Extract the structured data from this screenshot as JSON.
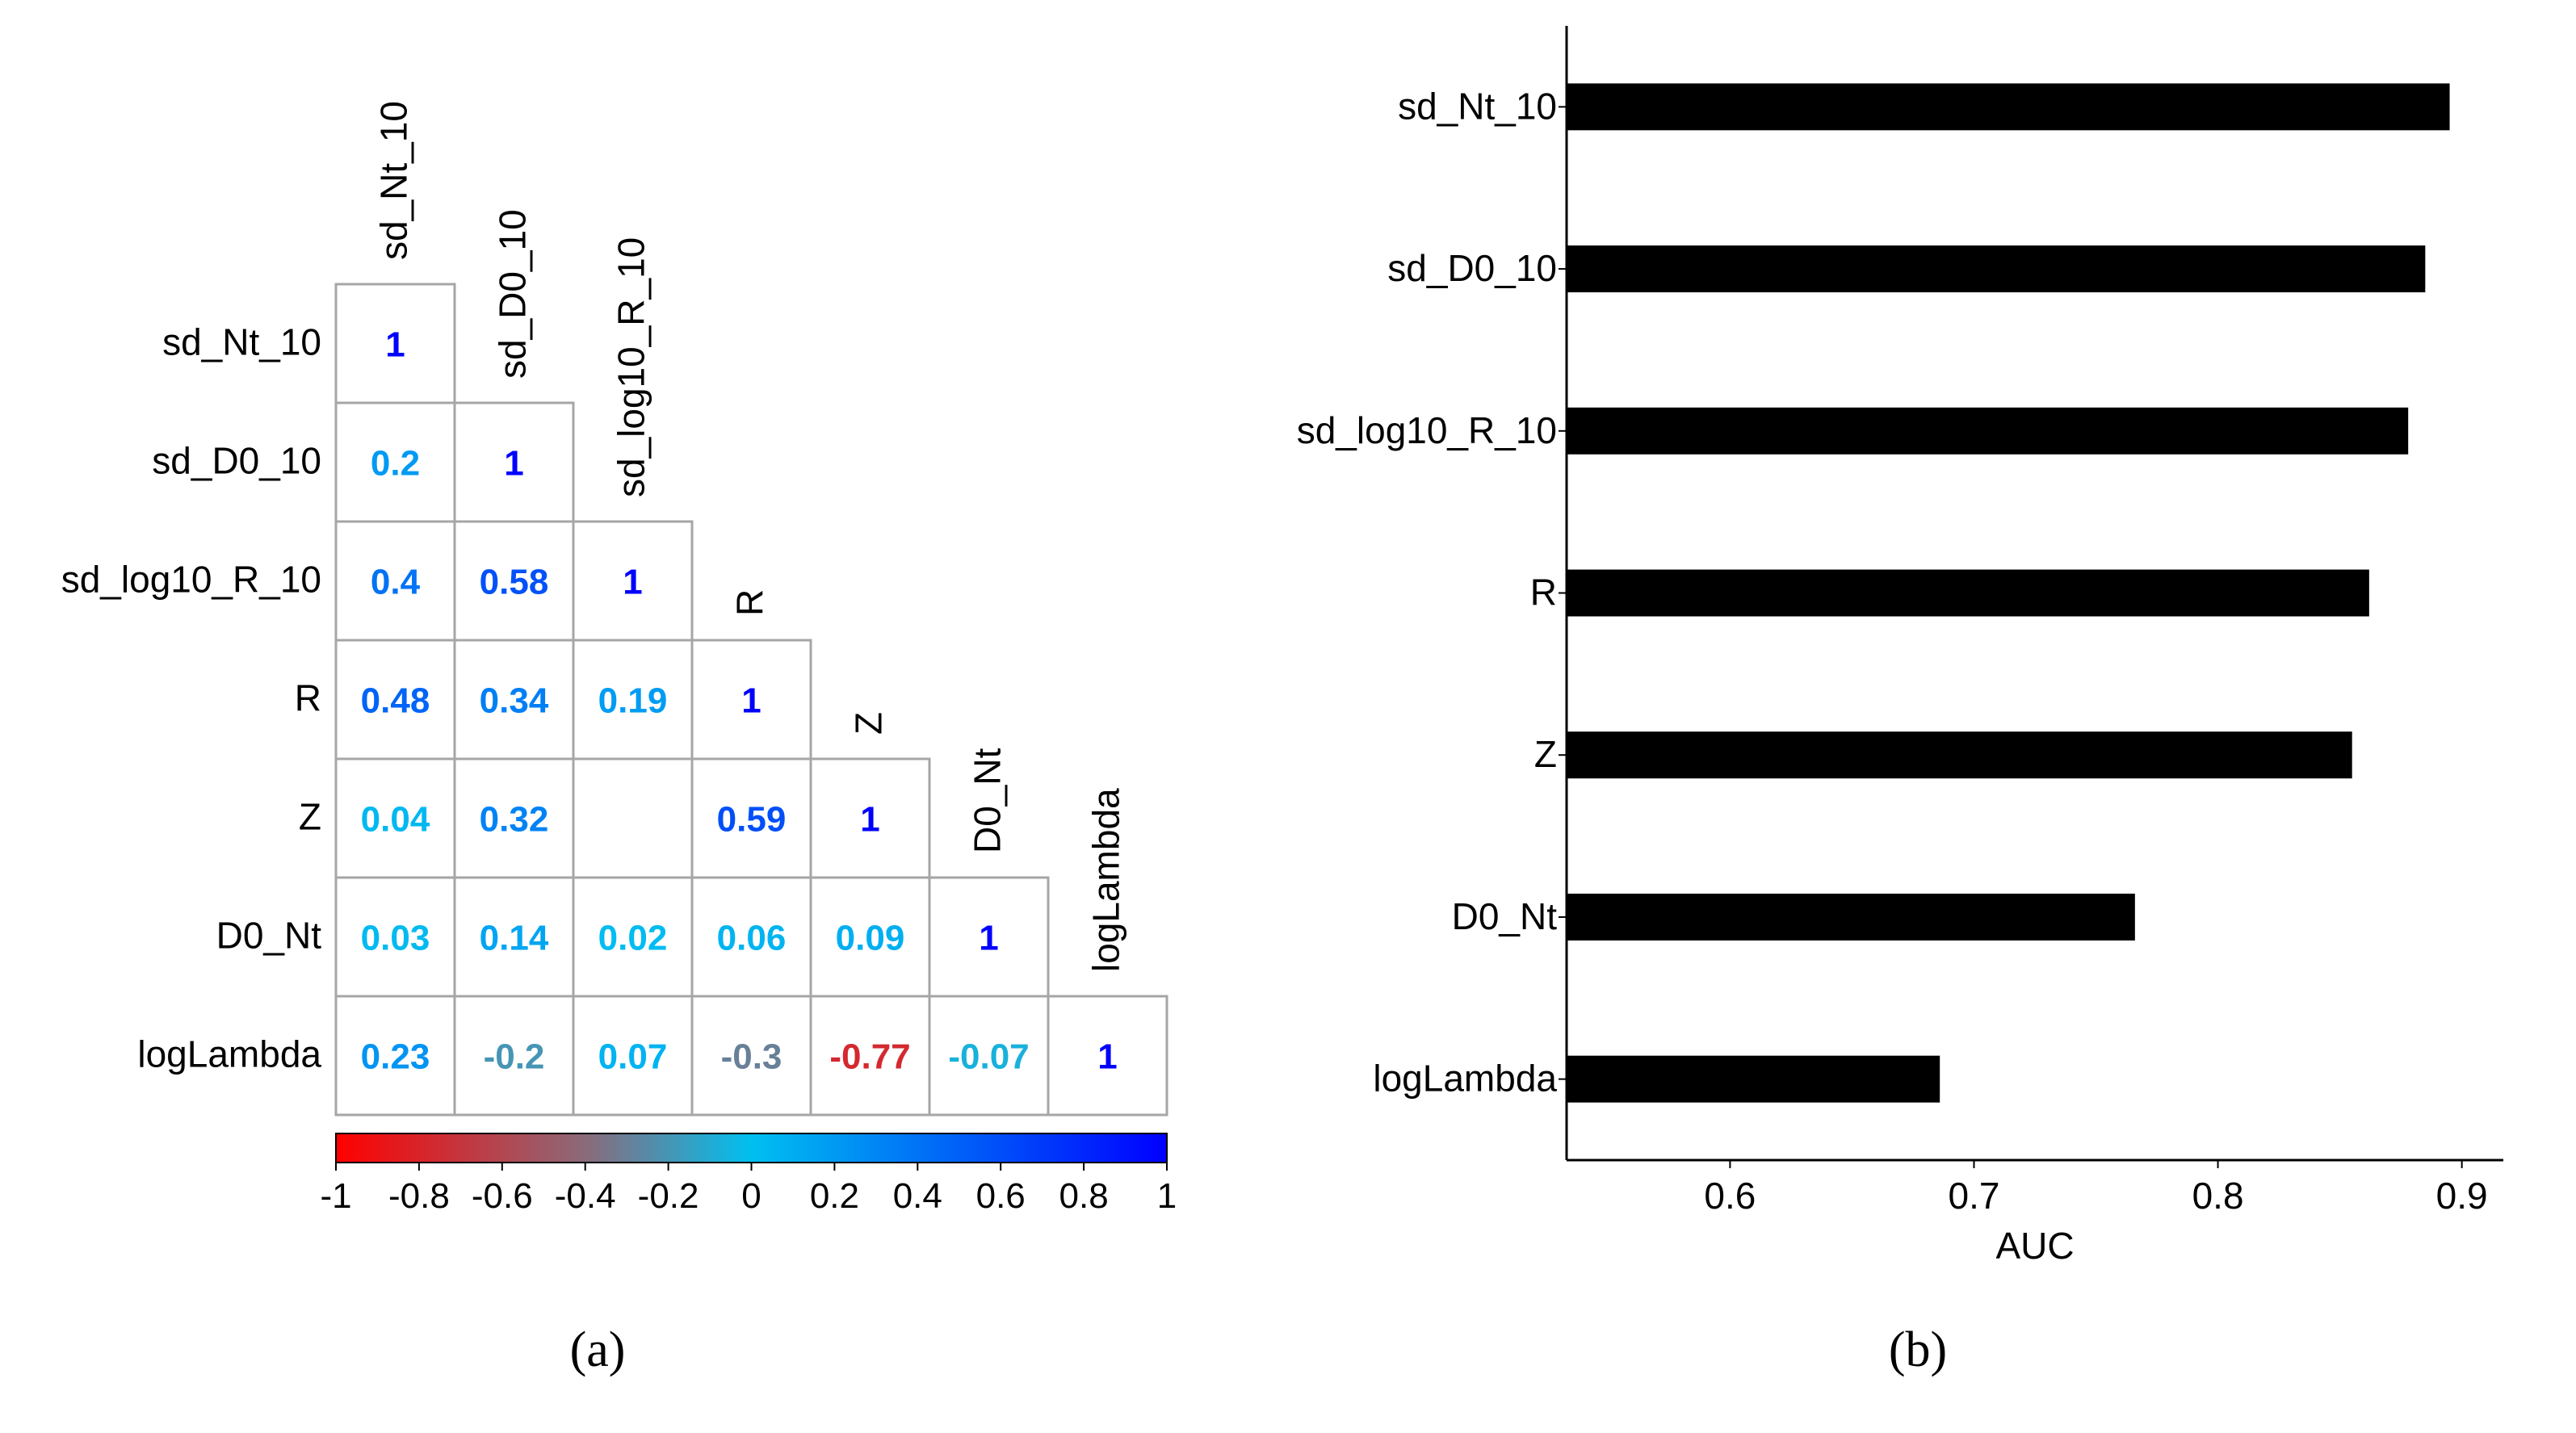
{
  "chart_data": [
    {
      "type": "heatmap",
      "panel_label": "(a)",
      "variables": [
        "sd_Nt_10",
        "sd_D0_10",
        "sd_log10_R_10",
        "R",
        "Z",
        "D0_Nt",
        "logLambda"
      ],
      "matrix": [
        [
          1,
          null,
          null,
          null,
          null,
          null,
          null
        ],
        [
          0.2,
          1,
          null,
          null,
          null,
          null,
          null
        ],
        [
          0.4,
          0.58,
          1,
          null,
          null,
          null,
          null
        ],
        [
          0.48,
          0.34,
          0.19,
          1,
          null,
          null,
          null
        ],
        [
          0.04,
          0.32,
          null,
          0.59,
          1,
          null,
          null
        ],
        [
          0.03,
          0.14,
          0.02,
          0.06,
          0.09,
          1,
          null
        ],
        [
          0.23,
          -0.2,
          0.07,
          -0.3,
          -0.77,
          -0.07,
          1
        ]
      ],
      "colorbar": {
        "range": [
          -1,
          1
        ],
        "tick_labels": [
          "-1",
          "-0.8",
          "-0.6",
          "-0.4",
          "-0.2",
          "0",
          "0.2",
          "0.4",
          "0.6",
          "0.8",
          "1"
        ],
        "colors": [
          "#ff0000",
          "#8b6a7a",
          "#00c0f0",
          "#0000ff"
        ]
      }
    },
    {
      "type": "bar",
      "orientation": "horizontal",
      "panel_label": "(b)",
      "categories": [
        "sd_Nt_10",
        "sd_D0_10",
        "sd_log10_R_10",
        "R",
        "Z",
        "D0_Nt",
        "logLambda"
      ],
      "values": [
        0.895,
        0.885,
        0.878,
        0.862,
        0.855,
        0.766,
        0.686
      ],
      "xlabel": "AUC",
      "xlim": [
        0.533,
        0.917
      ],
      "x_ticks": [
        0.6,
        0.7,
        0.8,
        0.9
      ],
      "x_tick_labels": [
        "0.6",
        "0.7",
        "0.8",
        "0.9"
      ],
      "bar_color": "#000000"
    }
  ]
}
